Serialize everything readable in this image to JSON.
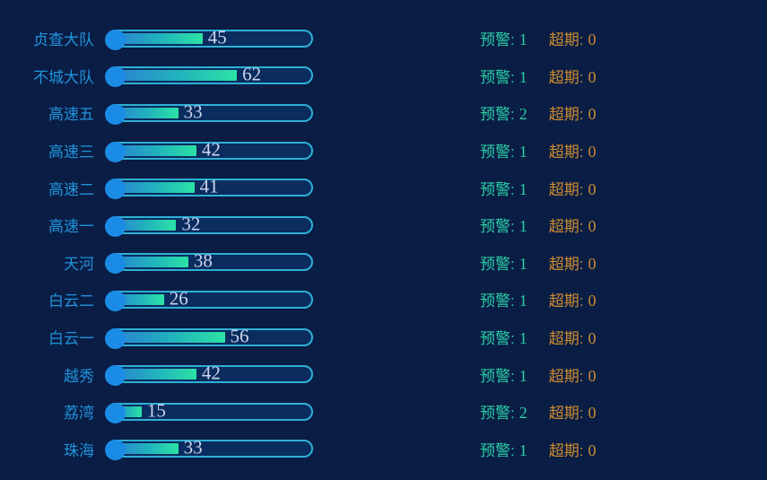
{
  "labels": {
    "warning_label": "预警:",
    "overdue_label": "超期:"
  },
  "rows": [
    {
      "label": "贞查大队",
      "value": 45,
      "warning": 1,
      "overdue": 0
    },
    {
      "label": "不城大队",
      "value": 62,
      "warning": 1,
      "overdue": 0
    },
    {
      "label": "高速五",
      "value": 33,
      "warning": 2,
      "overdue": 0
    },
    {
      "label": "高速三",
      "value": 42,
      "warning": 1,
      "overdue": 0
    },
    {
      "label": "高速二",
      "value": 41,
      "warning": 1,
      "overdue": 0
    },
    {
      "label": "高速一",
      "value": 32,
      "warning": 1,
      "overdue": 0
    },
    {
      "label": "天河",
      "value": 38,
      "warning": 1,
      "overdue": 0
    },
    {
      "label": "白云二",
      "value": 26,
      "warning": 1,
      "overdue": 0
    },
    {
      "label": "白云一",
      "value": 56,
      "warning": 1,
      "overdue": 0
    },
    {
      "label": "越秀",
      "value": 42,
      "warning": 1,
      "overdue": 0
    },
    {
      "label": "荔湾",
      "value": 15,
      "warning": 2,
      "overdue": 0
    },
    {
      "label": "珠海",
      "value": 33,
      "warning": 1,
      "overdue": 0
    }
  ],
  "colors": {
    "background": "#0a1d45",
    "label_blue": "#2094da",
    "track_border_cyan": "#2eb0d5",
    "track_fill_navy": "#0a2c5e",
    "bar_gradient_start": "#2a7fd4",
    "bar_gradient_end": "#2be3a5",
    "start_dot_blue": "#1b8ce5",
    "value_text": "#ccd4ee",
    "warning_teal": "#2bcfa7",
    "overdue_orange": "#cd8c2e"
  },
  "chart_data": {
    "type": "bar",
    "orientation": "horizontal",
    "categories": [
      "贞查大队",
      "不城大队",
      "高速五",
      "高速三",
      "高速二",
      "高速一",
      "天河",
      "白云二",
      "白云一",
      "越秀",
      "荔湾",
      "珠海"
    ],
    "series": [
      {
        "name": "bar_value",
        "values": [
          45,
          62,
          33,
          42,
          41,
          32,
          38,
          26,
          56,
          42,
          15,
          33
        ]
      },
      {
        "name": "预警",
        "values": [
          1,
          1,
          2,
          1,
          1,
          1,
          1,
          1,
          1,
          1,
          2,
          1
        ]
      },
      {
        "name": "超期",
        "values": [
          0,
          0,
          0,
          0,
          0,
          0,
          0,
          0,
          0,
          0,
          0,
          0
        ]
      }
    ],
    "xlim": [
      0,
      100
    ],
    "value_labels": true,
    "legend": "none",
    "grid": false
  }
}
